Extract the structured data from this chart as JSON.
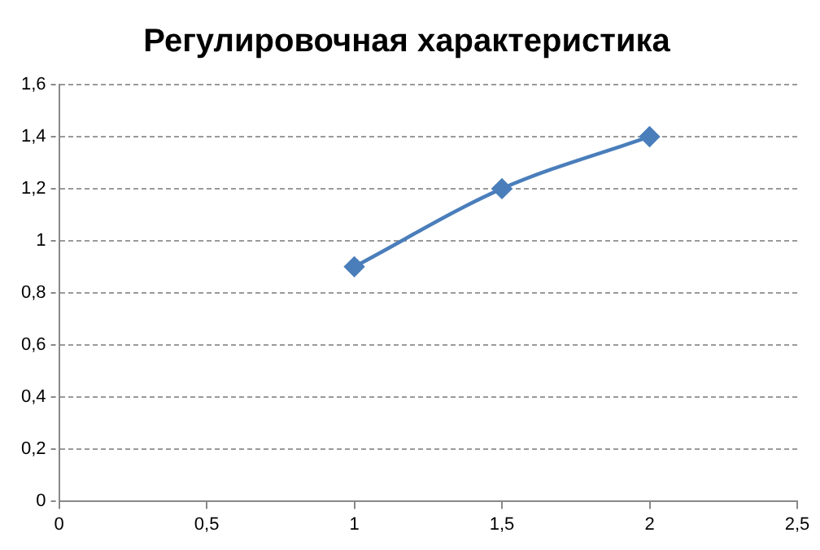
{
  "chart_data": {
    "type": "line",
    "title": "Регулировочная характеристика",
    "x": [
      1,
      1.5,
      2
    ],
    "series": [
      {
        "color": "#4a7ebb",
        "values": [
          0.9,
          1.2,
          1.4
        ]
      }
    ],
    "xlim": [
      0,
      2.5
    ],
    "xticks": [
      0,
      {
        "value": 0.5,
        "label": "0,5"
      },
      1,
      {
        "value": 1.5,
        "label": "1,5"
      },
      2,
      {
        "value": 2.5,
        "label": "2,5"
      }
    ],
    "ylim": [
      0,
      1.6
    ],
    "yticks": [
      0,
      {
        "value": 0.2,
        "label": "0,2"
      },
      {
        "value": 0.4,
        "label": "0,4"
      },
      {
        "value": 0.6,
        "label": "0,6"
      },
      {
        "value": 0.8,
        "label": "0,8"
      },
      1,
      {
        "value": 1.2,
        "label": "1,2"
      },
      {
        "value": 1.4,
        "label": "1,4"
      },
      {
        "value": 1.6,
        "label": "1,6"
      }
    ],
    "grid": "y",
    "marker": "diamond",
    "line_style": "solid",
    "legend": false
  }
}
